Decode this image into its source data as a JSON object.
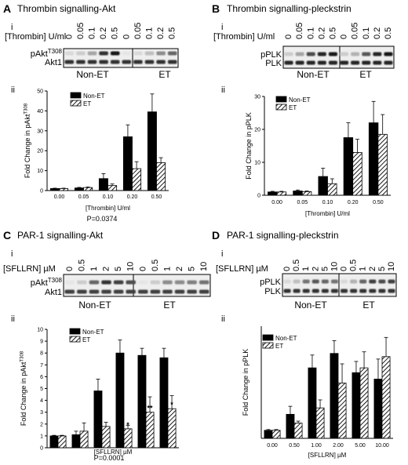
{
  "patterns": {
    "hatch_color": "#000000",
    "bar_fill": "#000000"
  },
  "panels": [
    {
      "letter": "A",
      "title": "Thrombin signalling-Akt",
      "sub_i": "i",
      "sub_ii": "ii",
      "blot": {
        "agonist_label": "[Thrombin] U/ml",
        "lane_labels": [
          "0",
          "0.05",
          "0.1",
          "0.2",
          "0.5",
          "0",
          "0.05",
          "0.1",
          "0.2",
          "0.5"
        ],
        "row_labels": [
          {
            "main": "pAkt",
            "sup": "T308"
          },
          {
            "main": "Akt1",
            "sup": ""
          }
        ],
        "group_labels": [
          "Non-ET",
          "ET"
        ]
      },
      "footnote": "P=0.0374"
    },
    {
      "letter": "B",
      "title": "Thrombin signalling-pleckstrin",
      "sub_i": "i",
      "sub_ii": "ii",
      "blot": {
        "agonist_label": "[Thrombin] U/ml",
        "lane_labels": [
          "0",
          "0.05",
          "0.1",
          "0.2",
          "0.5",
          "0",
          "0.05",
          "0.1",
          "0.2",
          "0.5"
        ],
        "row_labels": [
          {
            "main": "pPLK",
            "sup": ""
          },
          {
            "main": "PLK",
            "sup": ""
          }
        ],
        "group_labels": [
          "Non-ET",
          "ET"
        ]
      },
      "footnote": ""
    },
    {
      "letter": "C",
      "title": "PAR-1 signalling-Akt",
      "sub_i": "i",
      "sub_ii": "ii",
      "blot": {
        "agonist_label": "[SFLLRN] µM",
        "lane_labels": [
          "0",
          "0.5",
          "1",
          "2",
          "5",
          "10",
          "0",
          "0.5",
          "1",
          "2",
          "5",
          "10"
        ],
        "row_labels": [
          {
            "main": "pAkt",
            "sup": "T308"
          },
          {
            "main": "Akt1",
            "sup": ""
          }
        ],
        "group_labels": [
          "Non-ET",
          "ET"
        ]
      },
      "footnote": "P=0.0001"
    },
    {
      "letter": "D",
      "title": "PAR-1 signalling-pleckstrin",
      "sub_i": "i",
      "sub_ii": "ii",
      "blot": {
        "agonist_label": "[SFLLRN] µM",
        "lane_labels": [
          "0",
          "0.5",
          "1",
          "2",
          "5",
          "10",
          "0",
          "0.5",
          "1",
          "2",
          "5",
          "10"
        ],
        "row_labels": [
          {
            "main": "pPLK",
            "sup": ""
          },
          {
            "main": "PLK",
            "sup": ""
          }
        ],
        "group_labels": [
          "Non-ET",
          "ET"
        ]
      },
      "footnote": ""
    }
  ],
  "chart_data": [
    {
      "type": "bar",
      "panel": "A",
      "categories": [
        "0.00",
        "0.05",
        "0.10",
        "0.20",
        "0.50"
      ],
      "xlabel": "[Thrombin] U/ml",
      "ylabel": {
        "main": "Fold Change in pAkt",
        "sup": "T308"
      },
      "ylim": [
        0,
        50
      ],
      "yticks": [
        0,
        10,
        20,
        30,
        40,
        50
      ],
      "legend": "top-left",
      "series": [
        {
          "name": "Non-ET",
          "values": [
            1.0,
            1.3,
            6.0,
            27.0,
            39.5
          ],
          "errors": [
            0.2,
            0.3,
            2.5,
            6.0,
            9.0
          ],
          "fill": "solid"
        },
        {
          "name": "ET",
          "values": [
            1.0,
            1.5,
            2.5,
            11.0,
            14.0
          ],
          "errors": [
            0.2,
            0.3,
            0.8,
            3.5,
            2.5
          ],
          "fill": "hatch"
        }
      ],
      "annotations": []
    },
    {
      "type": "bar",
      "panel": "B",
      "categories": [
        "0.00",
        "0.05",
        "0.10",
        "0.20",
        "0.50"
      ],
      "xlabel": "[Thrombin] U/ml",
      "ylabel": {
        "main": "Fold Change in pPLK",
        "sup": ""
      },
      "ylim": [
        0,
        30
      ],
      "yticks": [
        0,
        10,
        20,
        30
      ],
      "legend": "top-left",
      "series": [
        {
          "name": "Non-ET",
          "values": [
            1.0,
            1.3,
            5.7,
            17.5,
            22.0
          ],
          "errors": [
            0.2,
            0.3,
            2.5,
            4.5,
            6.5
          ],
          "fill": "solid"
        },
        {
          "name": "ET",
          "values": [
            1.0,
            1.1,
            3.5,
            13.0,
            18.5
          ],
          "errors": [
            0.2,
            0.2,
            1.5,
            4.0,
            6.0
          ],
          "fill": "hatch"
        }
      ],
      "annotations": []
    },
    {
      "type": "bar",
      "panel": "C",
      "categories": [
        "0.0",
        "0.5",
        "1.0",
        "2.0",
        "5.0",
        "10.0"
      ],
      "xlabel": "[SFLLRN] µM",
      "ylabel": {
        "main": "Fold Change in pAkt",
        "sup": "T308"
      },
      "ylim": [
        0,
        10
      ],
      "yticks": [
        0,
        1,
        2,
        3,
        4,
        5,
        6,
        7,
        8,
        9,
        10
      ],
      "legend": "top-left",
      "series": [
        {
          "name": "Non-ET",
          "values": [
            1.0,
            1.1,
            4.8,
            8.0,
            7.8,
            7.6
          ],
          "errors": [
            0.05,
            0.3,
            1.0,
            1.1,
            0.6,
            0.8
          ],
          "fill": "solid"
        },
        {
          "name": "ET",
          "values": [
            1.0,
            1.4,
            1.8,
            1.6,
            3.0,
            3.3
          ],
          "errors": [
            0.05,
            0.7,
            0.35,
            0.3,
            1.3,
            1.1
          ],
          "fill": "hatch"
        }
      ],
      "annotations": [
        "",
        "",
        "",
        "*",
        "**",
        "*"
      ]
    },
    {
      "type": "bar",
      "panel": "D",
      "categories": [
        "0.00",
        "0.50",
        "1.00",
        "2.00",
        "5.00",
        "10.00"
      ],
      "xlabel": "[SFLLRN] µM",
      "ylabel": {
        "main": "Fold Change in pPLK",
        "sup": ""
      },
      "ylim": [
        0,
        14
      ],
      "yticks": [],
      "legend": "top-left",
      "series": [
        {
          "name": "Non-ET",
          "values": [
            1.0,
            3.0,
            8.8,
            10.6,
            8.2,
            7.4
          ],
          "errors": [
            0.1,
            1.0,
            1.6,
            1.6,
            1.4,
            2.5
          ],
          "fill": "solid"
        },
        {
          "name": "ET",
          "values": [
            1.0,
            1.9,
            3.8,
            6.9,
            8.8,
            10.2
          ],
          "errors": [
            0.1,
            0.25,
            1.0,
            2.4,
            2.0,
            2.4
          ],
          "fill": "hatch"
        }
      ],
      "annotations": []
    }
  ]
}
